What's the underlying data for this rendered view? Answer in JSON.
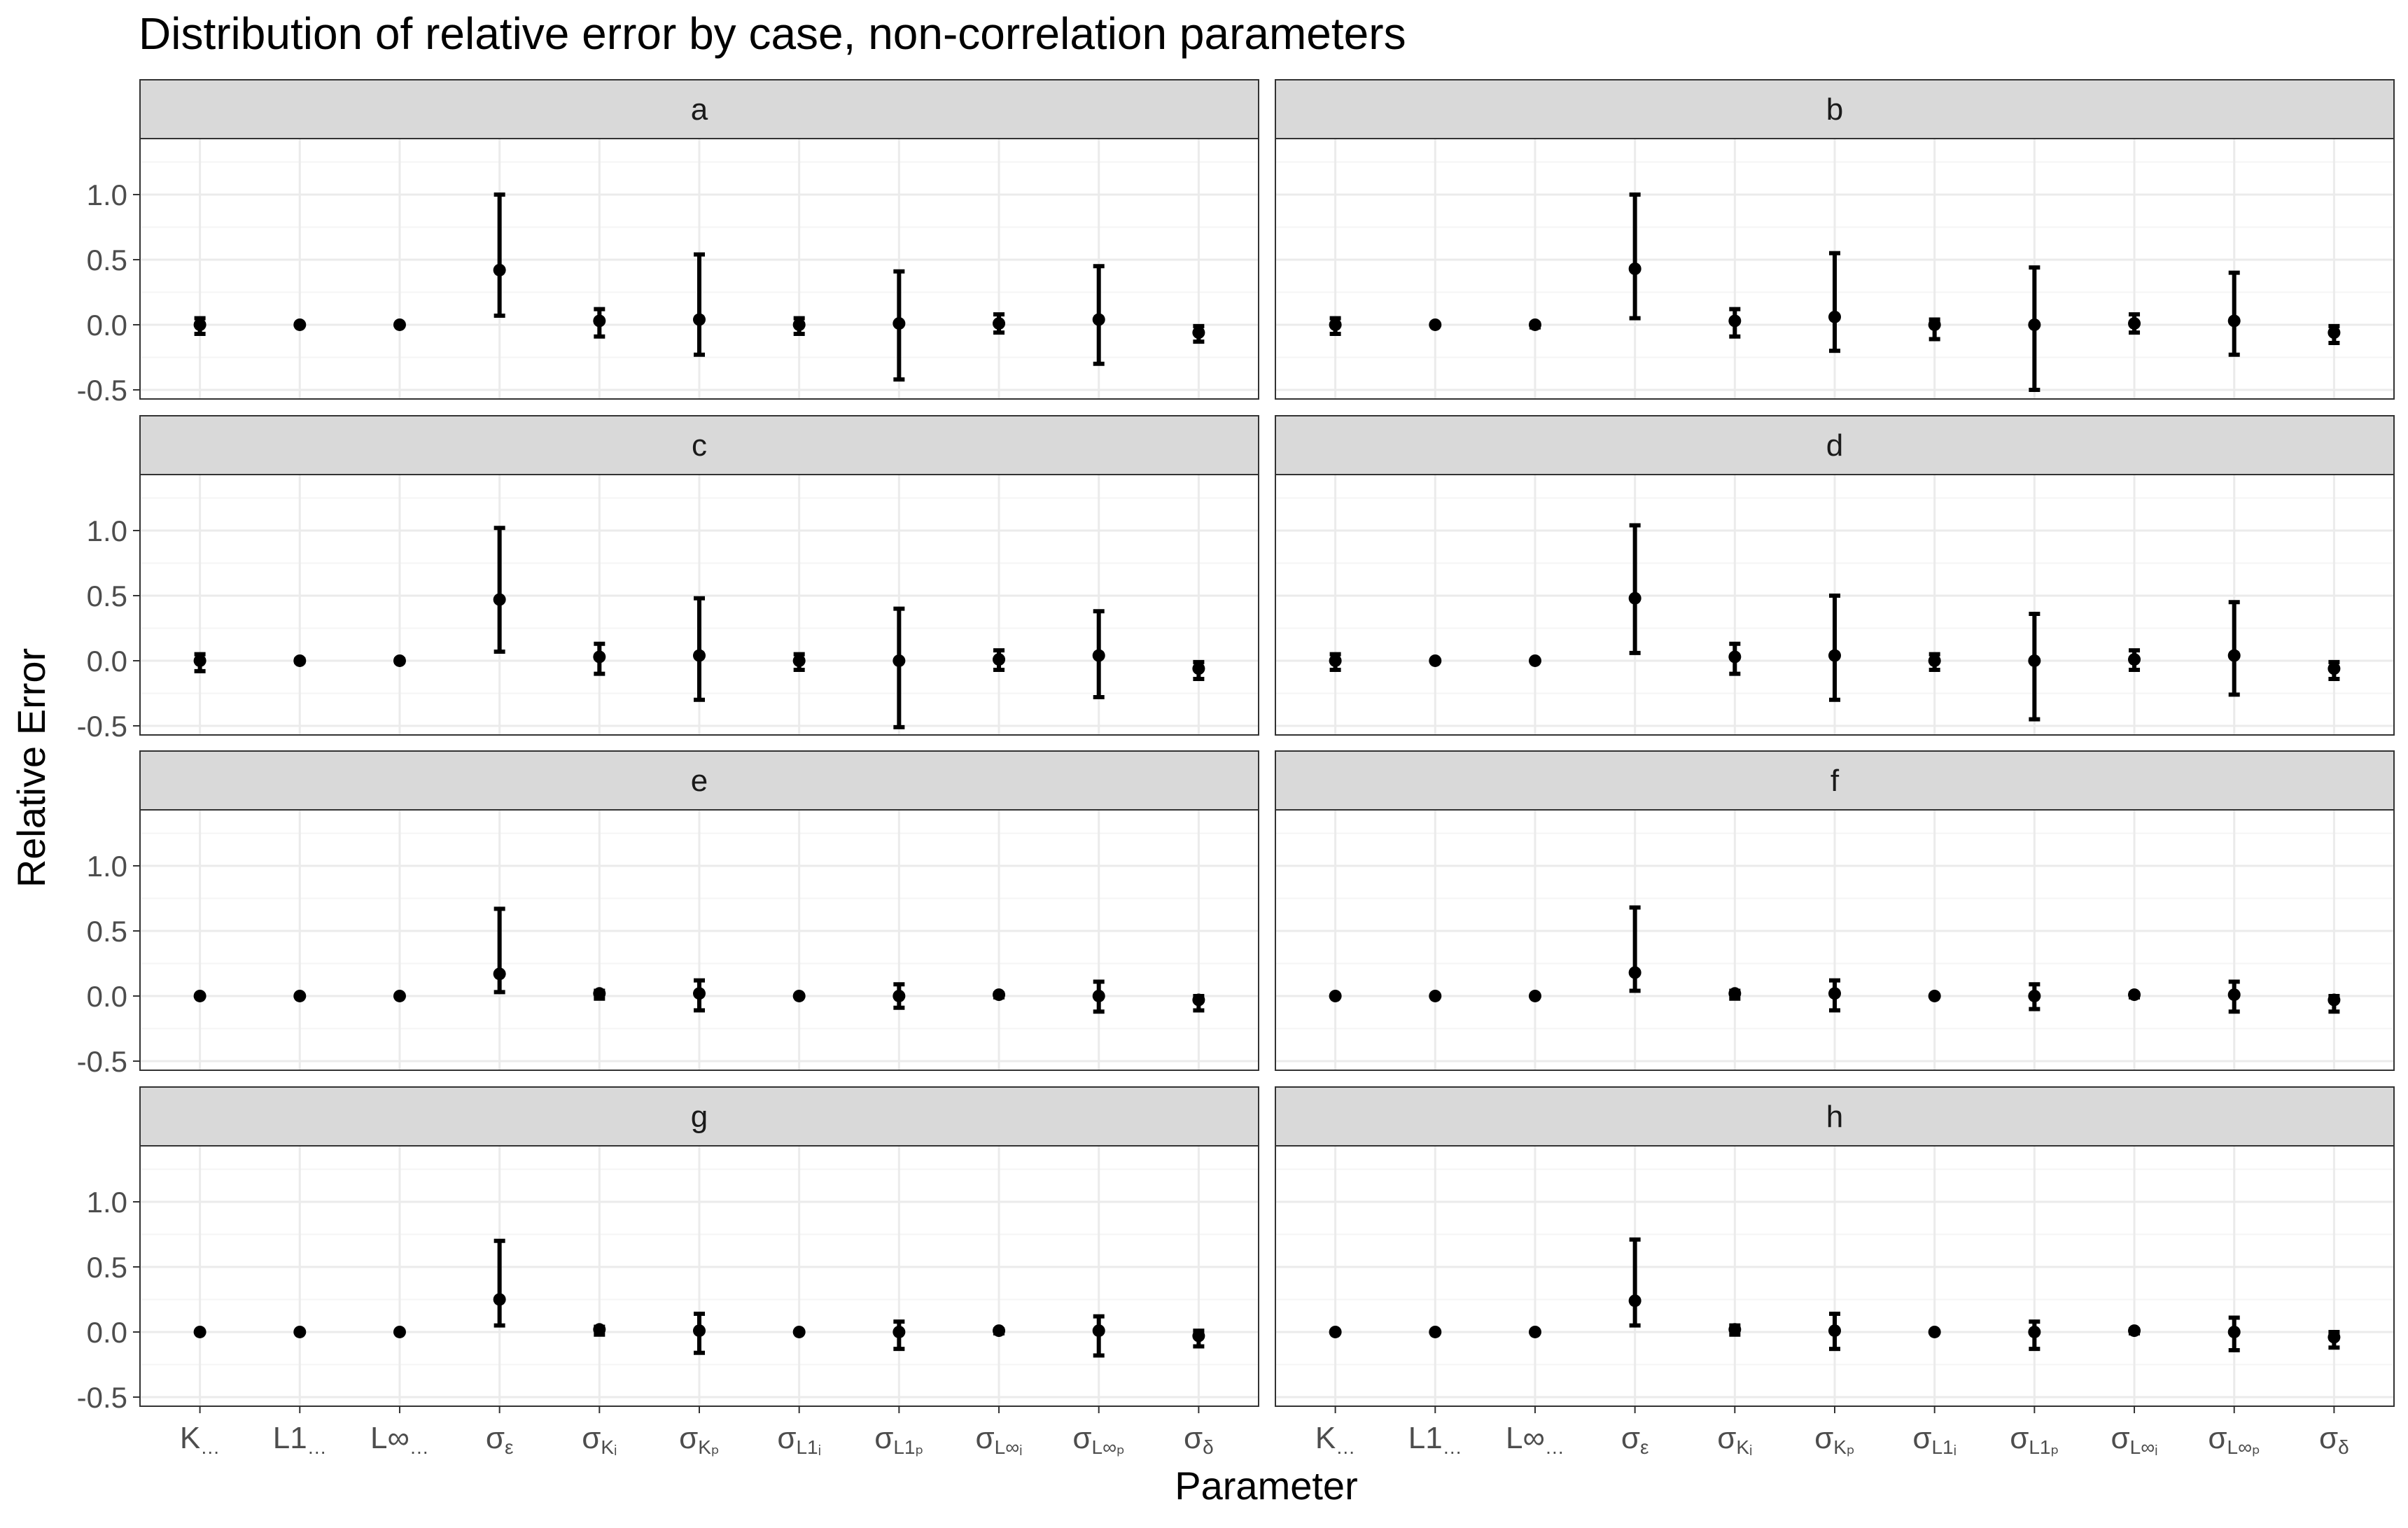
{
  "chart_data": {
    "type": "errorbar",
    "title": "Distribution of relative error by case, non-correlation parameters",
    "xlabel": "Parameter",
    "ylabel": "Relative Error",
    "ylim": [
      -0.57,
      1.43
    ],
    "yticks": [
      -0.5,
      0.0,
      0.5,
      1.0
    ],
    "ytick_labels": [
      "-0.5",
      "0.0",
      "0.5",
      "1.0"
    ],
    "grid": true,
    "facet_layout": {
      "rows": 4,
      "cols": 2
    },
    "categories": [
      {
        "base": "K",
        "sub": "…"
      },
      {
        "base": "L1",
        "sub": "…"
      },
      {
        "base": "L∞",
        "sub": "…"
      },
      {
        "base": "σ",
        "sub": "ε"
      },
      {
        "base": "σ",
        "sub": "Kᵢ"
      },
      {
        "base": "σ",
        "sub": "Kₚ"
      },
      {
        "base": "σ",
        "sub": "L1ᵢ"
      },
      {
        "base": "σ",
        "sub": "L1ₚ"
      },
      {
        "base": "σ",
        "sub": "L∞ᵢ"
      },
      {
        "base": "σ",
        "sub": "L∞ₚ"
      },
      {
        "base": "σ",
        "sub": "δ"
      }
    ],
    "panels": [
      {
        "label": "a",
        "points": [
          {
            "y": 0.0,
            "lo": -0.07,
            "hi": 0.05
          },
          {
            "y": 0.0,
            "lo": 0.0,
            "hi": 0.0
          },
          {
            "y": 0.0,
            "lo": 0.0,
            "hi": 0.0
          },
          {
            "y": 0.42,
            "lo": 0.07,
            "hi": 1.0
          },
          {
            "y": 0.03,
            "lo": -0.09,
            "hi": 0.12
          },
          {
            "y": 0.04,
            "lo": -0.23,
            "hi": 0.54
          },
          {
            "y": 0.0,
            "lo": -0.07,
            "hi": 0.05
          },
          {
            "y": 0.01,
            "lo": -0.42,
            "hi": 0.41
          },
          {
            "y": 0.01,
            "lo": -0.06,
            "hi": 0.08
          },
          {
            "y": 0.04,
            "lo": -0.3,
            "hi": 0.45
          },
          {
            "y": -0.06,
            "lo": -0.13,
            "hi": -0.01
          }
        ]
      },
      {
        "label": "b",
        "points": [
          {
            "y": 0.0,
            "lo": -0.07,
            "hi": 0.05
          },
          {
            "y": 0.0,
            "lo": 0.0,
            "hi": 0.0
          },
          {
            "y": 0.0,
            "lo": -0.02,
            "hi": 0.01
          },
          {
            "y": 0.43,
            "lo": 0.05,
            "hi": 1.0
          },
          {
            "y": 0.03,
            "lo": -0.09,
            "hi": 0.12
          },
          {
            "y": 0.06,
            "lo": -0.2,
            "hi": 0.55
          },
          {
            "y": 0.0,
            "lo": -0.11,
            "hi": 0.04
          },
          {
            "y": 0.0,
            "lo": -0.5,
            "hi": 0.44
          },
          {
            "y": 0.01,
            "lo": -0.06,
            "hi": 0.08
          },
          {
            "y": 0.03,
            "lo": -0.23,
            "hi": 0.4
          },
          {
            "y": -0.06,
            "lo": -0.14,
            "hi": -0.01
          }
        ]
      },
      {
        "label": "c",
        "points": [
          {
            "y": 0.0,
            "lo": -0.08,
            "hi": 0.05
          },
          {
            "y": 0.0,
            "lo": -0.01,
            "hi": 0.01
          },
          {
            "y": 0.0,
            "lo": -0.01,
            "hi": 0.01
          },
          {
            "y": 0.47,
            "lo": 0.07,
            "hi": 1.02
          },
          {
            "y": 0.03,
            "lo": -0.1,
            "hi": 0.13
          },
          {
            "y": 0.04,
            "lo": -0.3,
            "hi": 0.48
          },
          {
            "y": 0.0,
            "lo": -0.07,
            "hi": 0.05
          },
          {
            "y": 0.0,
            "lo": -0.51,
            "hi": 0.4
          },
          {
            "y": 0.01,
            "lo": -0.07,
            "hi": 0.08
          },
          {
            "y": 0.04,
            "lo": -0.28,
            "hi": 0.38
          },
          {
            "y": -0.06,
            "lo": -0.14,
            "hi": -0.01
          }
        ]
      },
      {
        "label": "d",
        "points": [
          {
            "y": 0.0,
            "lo": -0.07,
            "hi": 0.05
          },
          {
            "y": 0.0,
            "lo": 0.0,
            "hi": 0.0
          },
          {
            "y": 0.0,
            "lo": 0.0,
            "hi": 0.0
          },
          {
            "y": 0.48,
            "lo": 0.06,
            "hi": 1.04
          },
          {
            "y": 0.03,
            "lo": -0.1,
            "hi": 0.13
          },
          {
            "y": 0.04,
            "lo": -0.3,
            "hi": 0.5
          },
          {
            "y": 0.0,
            "lo": -0.07,
            "hi": 0.05
          },
          {
            "y": 0.0,
            "lo": -0.45,
            "hi": 0.36
          },
          {
            "y": 0.01,
            "lo": -0.07,
            "hi": 0.08
          },
          {
            "y": 0.04,
            "lo": -0.26,
            "hi": 0.45
          },
          {
            "y": -0.06,
            "lo": -0.14,
            "hi": -0.01
          }
        ]
      },
      {
        "label": "e",
        "points": [
          {
            "y": 0.0,
            "lo": 0.0,
            "hi": 0.0
          },
          {
            "y": 0.0,
            "lo": 0.0,
            "hi": 0.0
          },
          {
            "y": 0.0,
            "lo": 0.0,
            "hi": 0.0
          },
          {
            "y": 0.17,
            "lo": 0.03,
            "hi": 0.67
          },
          {
            "y": 0.02,
            "lo": -0.02,
            "hi": 0.04
          },
          {
            "y": 0.02,
            "lo": -0.11,
            "hi": 0.12
          },
          {
            "y": 0.0,
            "lo": 0.0,
            "hi": 0.0
          },
          {
            "y": 0.0,
            "lo": -0.09,
            "hi": 0.09
          },
          {
            "y": 0.01,
            "lo": -0.01,
            "hi": 0.02
          },
          {
            "y": 0.0,
            "lo": -0.12,
            "hi": 0.11
          },
          {
            "y": -0.03,
            "lo": -0.11,
            "hi": 0.0
          }
        ]
      },
      {
        "label": "f",
        "points": [
          {
            "y": 0.0,
            "lo": 0.0,
            "hi": 0.0
          },
          {
            "y": 0.0,
            "lo": 0.0,
            "hi": 0.0
          },
          {
            "y": 0.0,
            "lo": 0.0,
            "hi": 0.0
          },
          {
            "y": 0.18,
            "lo": 0.04,
            "hi": 0.68
          },
          {
            "y": 0.02,
            "lo": -0.02,
            "hi": 0.04
          },
          {
            "y": 0.02,
            "lo": -0.11,
            "hi": 0.12
          },
          {
            "y": 0.0,
            "lo": 0.0,
            "hi": 0.0
          },
          {
            "y": 0.0,
            "lo": -0.1,
            "hi": 0.09
          },
          {
            "y": 0.01,
            "lo": -0.01,
            "hi": 0.02
          },
          {
            "y": 0.01,
            "lo": -0.12,
            "hi": 0.11
          },
          {
            "y": -0.03,
            "lo": -0.12,
            "hi": 0.0
          }
        ]
      },
      {
        "label": "g",
        "points": [
          {
            "y": 0.0,
            "lo": 0.0,
            "hi": 0.0
          },
          {
            "y": 0.0,
            "lo": 0.0,
            "hi": 0.0
          },
          {
            "y": 0.0,
            "lo": 0.0,
            "hi": 0.0
          },
          {
            "y": 0.25,
            "lo": 0.05,
            "hi": 0.7
          },
          {
            "y": 0.02,
            "lo": -0.02,
            "hi": 0.04
          },
          {
            "y": 0.01,
            "lo": -0.16,
            "hi": 0.14
          },
          {
            "y": 0.0,
            "lo": 0.0,
            "hi": 0.0
          },
          {
            "y": 0.0,
            "lo": -0.13,
            "hi": 0.08
          },
          {
            "y": 0.01,
            "lo": -0.01,
            "hi": 0.02
          },
          {
            "y": 0.01,
            "lo": -0.18,
            "hi": 0.12
          },
          {
            "y": -0.03,
            "lo": -0.11,
            "hi": 0.01
          }
        ]
      },
      {
        "label": "h",
        "points": [
          {
            "y": 0.0,
            "lo": 0.0,
            "hi": 0.0
          },
          {
            "y": 0.0,
            "lo": 0.0,
            "hi": 0.0
          },
          {
            "y": 0.0,
            "lo": 0.0,
            "hi": 0.0
          },
          {
            "y": 0.24,
            "lo": 0.05,
            "hi": 0.71
          },
          {
            "y": 0.02,
            "lo": -0.02,
            "hi": 0.05
          },
          {
            "y": 0.01,
            "lo": -0.13,
            "hi": 0.14
          },
          {
            "y": 0.0,
            "lo": 0.0,
            "hi": 0.0
          },
          {
            "y": 0.0,
            "lo": -0.13,
            "hi": 0.08
          },
          {
            "y": 0.01,
            "lo": -0.01,
            "hi": 0.02
          },
          {
            "y": 0.0,
            "lo": -0.14,
            "hi": 0.11
          },
          {
            "y": -0.04,
            "lo": -0.12,
            "hi": 0.0
          }
        ]
      }
    ]
  },
  "colors": {
    "background": "#ffffff",
    "panel_border": "#333333",
    "strip_fill": "#d9d9d9",
    "grid_major": "#ebebeb",
    "grid_minor": "#f5f5f5",
    "marks": "#000000",
    "tick_text": "#4d4d4d",
    "label_text": "#000000"
  }
}
